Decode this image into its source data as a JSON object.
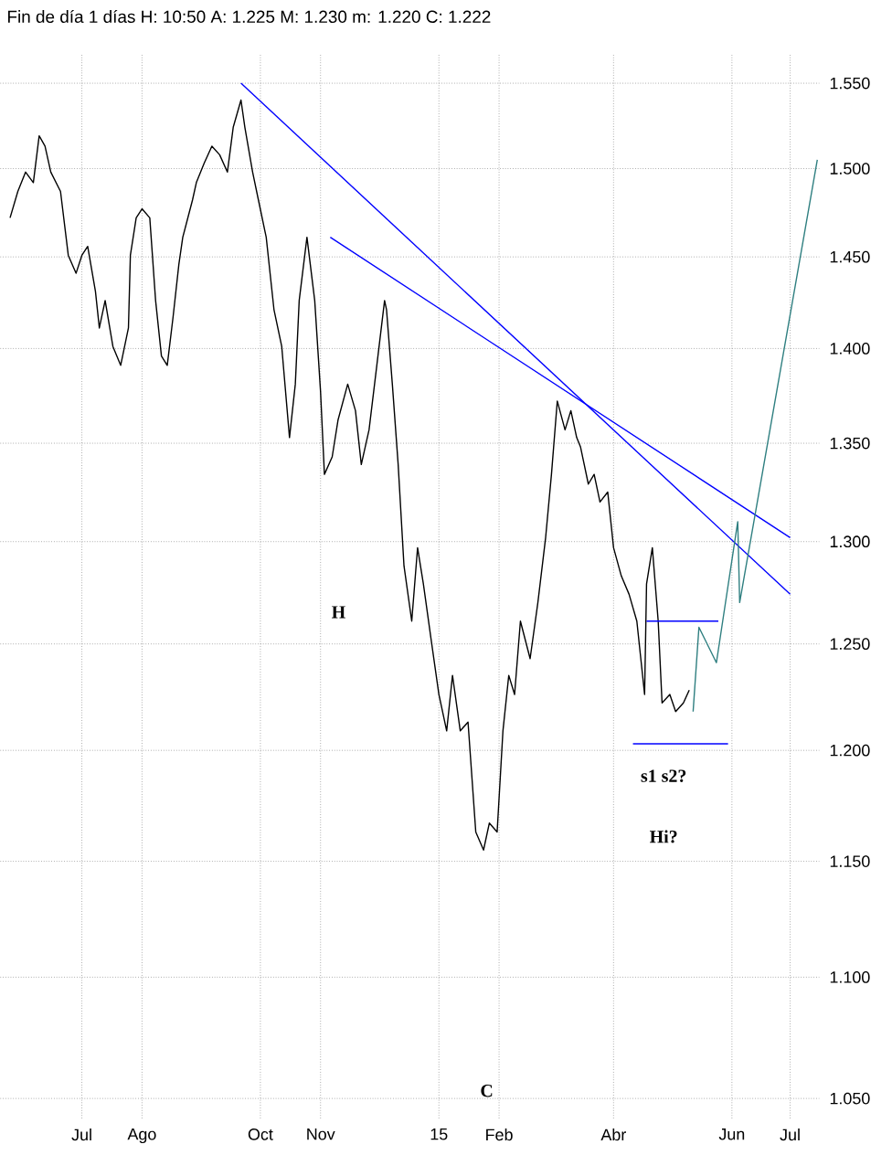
{
  "chart_data": {
    "type": "line",
    "title": "Fin de día 1 días H: 10:50 A: 1.225 M: 1.230 m: 1.220 C: 1.222",
    "log": true,
    "grid": true,
    "marker": "none",
    "xlim": [
      "2014-05-20",
      "2015-07-16"
    ],
    "ylim": [
      1.042,
      1.567
    ],
    "xticks": [
      {
        "value": "2014-07-01",
        "label": "Jul"
      },
      {
        "value": "2014-08-01",
        "label": "Ago"
      },
      {
        "value": "2014-10-01",
        "label": "Oct"
      },
      {
        "value": "2014-11-01",
        "label": "Nov"
      },
      {
        "value": "2015-01-01",
        "label": "15"
      },
      {
        "value": "2015-02-01",
        "label": "Feb"
      },
      {
        "value": "2015-04-01",
        "label": "Abr"
      },
      {
        "value": "2015-06-01",
        "label": "Jun"
      },
      {
        "value": "2015-07-01",
        "label": "Jul"
      }
    ],
    "yticks": [
      {
        "value": 1.05,
        "label": "1.050"
      },
      {
        "value": 1.1,
        "label": "1.100"
      },
      {
        "value": 1.15,
        "label": "1.150"
      },
      {
        "value": 1.2,
        "label": "1.200"
      },
      {
        "value": 1.25,
        "label": "1.250"
      },
      {
        "value": 1.3,
        "label": "1.300"
      },
      {
        "value": 1.35,
        "label": "1.350"
      },
      {
        "value": 1.4,
        "label": "1.400"
      },
      {
        "value": 1.45,
        "label": "1.450"
      },
      {
        "value": 1.5,
        "label": "1.500"
      },
      {
        "value": 1.55,
        "label": "1.550"
      }
    ],
    "series": [
      {
        "color": "#000000",
        "x": [
          "2014-05-25",
          "2014-05-29",
          "2014-06-02",
          "2014-06-06",
          "2014-06-09",
          "2014-06-12",
          "2014-06-15",
          "2014-06-20",
          "2014-06-24",
          "2014-06-28",
          "2014-07-01",
          "2014-07-04",
          "2014-07-08",
          "2014-07-10",
          "2014-07-13",
          "2014-07-17",
          "2014-07-21",
          "2014-07-25",
          "2014-07-26",
          "2014-07-29",
          "2014-08-01",
          "2014-08-05",
          "2014-08-08",
          "2014-08-11",
          "2014-08-14",
          "2014-08-17",
          "2014-08-20",
          "2014-08-22",
          "2014-08-27",
          "2014-08-29",
          "2014-09-02",
          "2014-09-06",
          "2014-09-10",
          "2014-09-14",
          "2014-09-17",
          "2014-09-21",
          "2014-09-23",
          "2014-09-27",
          "2014-09-30",
          "2014-10-04",
          "2014-10-08",
          "2014-10-12",
          "2014-10-16",
          "2014-10-19",
          "2014-10-21",
          "2014-10-25",
          "2014-10-29",
          "2014-11-01",
          "2014-11-03",
          "2014-11-07",
          "2014-11-10",
          "2014-11-15",
          "2014-11-19",
          "2014-11-22",
          "2014-11-26",
          "2014-11-30",
          "2014-12-04",
          "2014-12-05",
          "2014-12-08",
          "2014-12-11",
          "2014-12-14",
          "2014-12-18",
          "2014-12-21",
          "2014-12-24",
          "2014-12-28",
          "2015-01-01",
          "2015-01-05",
          "2015-01-08",
          "2015-01-12",
          "2015-01-16",
          "2015-01-20",
          "2015-01-24",
          "2015-01-27",
          "2015-01-31",
          "2015-02-03",
          "2015-02-06",
          "2015-02-09",
          "2015-02-12",
          "2015-02-17",
          "2015-02-21",
          "2015-02-25",
          "2015-02-28",
          "2015-03-03",
          "2015-03-07",
          "2015-03-10",
          "2015-03-13",
          "2015-03-15",
          "2015-03-19",
          "2015-03-22",
          "2015-03-25",
          "2015-03-29",
          "2015-04-01",
          "2015-04-05",
          "2015-04-09",
          "2015-04-13",
          "2015-04-17",
          "2015-04-18",
          "2015-04-21",
          "2015-04-24",
          "2015-04-26",
          "2015-04-30",
          "2015-05-03",
          "2015-05-07",
          "2015-05-10"
        ],
        "values": [
          1.472,
          1.487,
          1.498,
          1.492,
          1.519,
          1.513,
          1.498,
          1.487,
          1.451,
          1.441,
          1.451,
          1.456,
          1.431,
          1.411,
          1.426,
          1.401,
          1.391,
          1.411,
          1.451,
          1.472,
          1.477,
          1.472,
          1.426,
          1.396,
          1.391,
          1.417,
          1.446,
          1.461,
          1.482,
          1.492,
          1.503,
          1.513,
          1.508,
          1.498,
          1.524,
          1.54,
          1.524,
          1.498,
          1.482,
          1.461,
          1.421,
          1.401,
          1.353,
          1.381,
          1.426,
          1.461,
          1.426,
          1.377,
          1.334,
          1.343,
          1.362,
          1.381,
          1.367,
          1.339,
          1.357,
          1.391,
          1.426,
          1.421,
          1.381,
          1.339,
          1.288,
          1.261,
          1.297,
          1.279,
          1.252,
          1.226,
          1.209,
          1.235,
          1.209,
          1.213,
          1.163,
          1.155,
          1.167,
          1.163,
          1.209,
          1.235,
          1.226,
          1.261,
          1.243,
          1.27,
          1.302,
          1.334,
          1.372,
          1.357,
          1.367,
          1.353,
          1.348,
          1.329,
          1.334,
          1.32,
          1.325,
          1.297,
          1.283,
          1.274,
          1.261,
          1.226,
          1.279,
          1.297,
          1.261,
          1.222,
          1.226,
          1.218,
          1.222,
          1.228
        ]
      },
      {
        "color": "#0000ff",
        "x": [
          "2014-09-21",
          "2015-07-01"
        ],
        "values": [
          1.55,
          1.274
        ]
      },
      {
        "color": "#0000ff",
        "x": [
          "2014-11-06",
          "2015-07-01"
        ],
        "values": [
          1.461,
          1.302
        ]
      },
      {
        "color": "#0000ff",
        "x": [
          "2015-04-18",
          "2015-05-25"
        ],
        "values": [
          1.261,
          1.261
        ]
      },
      {
        "color": "#0000ff",
        "x": [
          "2015-04-11",
          "2015-05-30"
        ],
        "values": [
          1.203,
          1.203
        ]
      },
      {
        "color": "#2f7f80",
        "x": [
          "2015-05-12",
          "2015-05-15",
          "2015-05-24",
          "2015-06-04",
          "2015-06-05",
          "2015-07-15"
        ],
        "values": [
          1.218,
          1.258,
          1.241,
          1.31,
          1.27,
          1.505
        ]
      }
    ],
    "annotations": [
      "H",
      "C",
      "s1 s2?",
      "Hi?"
    ]
  }
}
